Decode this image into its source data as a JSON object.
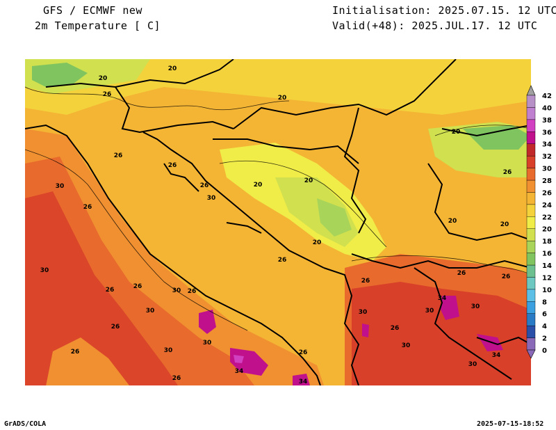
{
  "header": {
    "model": "GFS / ECMWF new",
    "variable": "2m Temperature [ C]",
    "init": "Initialisation: 2025.07.15. 12 UTC",
    "valid": "Valid(+48): 2025.JUL.17. 12 UTC"
  },
  "footer": {
    "left": "GrADS/COLA",
    "right": "2025-07-15-18:52"
  },
  "colorbar": {
    "levels": [
      "0",
      "2",
      "4",
      "6",
      "8",
      "10",
      "12",
      "14",
      "16",
      "18",
      "20",
      "22",
      "24",
      "26",
      "28",
      "30",
      "32",
      "34",
      "36",
      "38",
      "40",
      "42"
    ],
    "colors": [
      "#8a6ab8",
      "#2a4fa8",
      "#2a7bc6",
      "#3aa0e0",
      "#5cc0e6",
      "#6cc8c0",
      "#6cc090",
      "#80c460",
      "#a8d45a",
      "#d0e04e",
      "#f0ec48",
      "#f4d23c",
      "#f4b434",
      "#f09030",
      "#e86a2c",
      "#d8402a",
      "#c0282a",
      "#c0108c",
      "#d040c0",
      "#c080d0",
      "#b890c8"
    ],
    "over_color": "#a0a0a0",
    "under_color": "#8a6ab8"
  },
  "map_labels": [
    {
      "v": "20"
    },
    {
      "v": "20"
    },
    {
      "v": "26"
    },
    {
      "v": "20"
    },
    {
      "v": "20"
    },
    {
      "v": "26"
    },
    {
      "v": "26"
    },
    {
      "v": "26"
    },
    {
      "v": "30"
    },
    {
      "v": "26"
    },
    {
      "v": "20"
    },
    {
      "v": "20"
    },
    {
      "v": "30"
    },
    {
      "v": "26"
    },
    {
      "v": "20"
    },
    {
      "v": "20"
    },
    {
      "v": "20"
    },
    {
      "v": "26"
    },
    {
      "v": "30"
    },
    {
      "v": "26"
    },
    {
      "v": "30"
    },
    {
      "v": "26"
    },
    {
      "v": "26"
    },
    {
      "v": "26"
    },
    {
      "v": "26"
    },
    {
      "v": "30"
    },
    {
      "v": "26"
    },
    {
      "v": "30"
    },
    {
      "v": "34"
    },
    {
      "v": "30"
    },
    {
      "v": "26"
    },
    {
      "v": "30"
    },
    {
      "v": "30"
    },
    {
      "v": "34"
    },
    {
      "v": "26"
    },
    {
      "v": "30"
    },
    {
      "v": "34"
    },
    {
      "v": "30"
    },
    {
      "v": "26"
    },
    {
      "v": "34"
    },
    {
      "v": "30"
    },
    {
      "v": "26"
    },
    {
      "v": "26"
    }
  ]
}
